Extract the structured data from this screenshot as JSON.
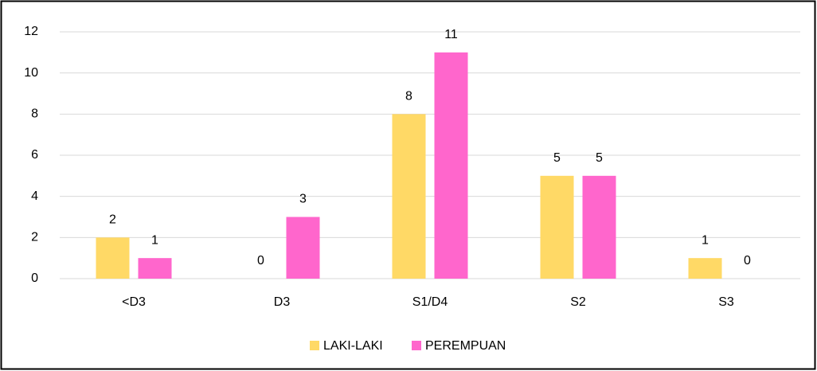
{
  "chart_data": {
    "type": "bar",
    "categories": [
      "<D3",
      "D3",
      "S1/D4",
      "S2",
      "S3"
    ],
    "series": [
      {
        "name": "LAKI-LAKI",
        "color": "#ffd966",
        "values": [
          2,
          0,
          8,
          5,
          1
        ]
      },
      {
        "name": "PEREMPUAN",
        "color": "#ff66cc",
        "values": [
          1,
          3,
          11,
          5,
          0
        ]
      }
    ],
    "ylim": [
      0,
      12
    ],
    "yticks": [
      0,
      2,
      4,
      6,
      8,
      10,
      12
    ],
    "grid": true,
    "legend": "bottom"
  }
}
